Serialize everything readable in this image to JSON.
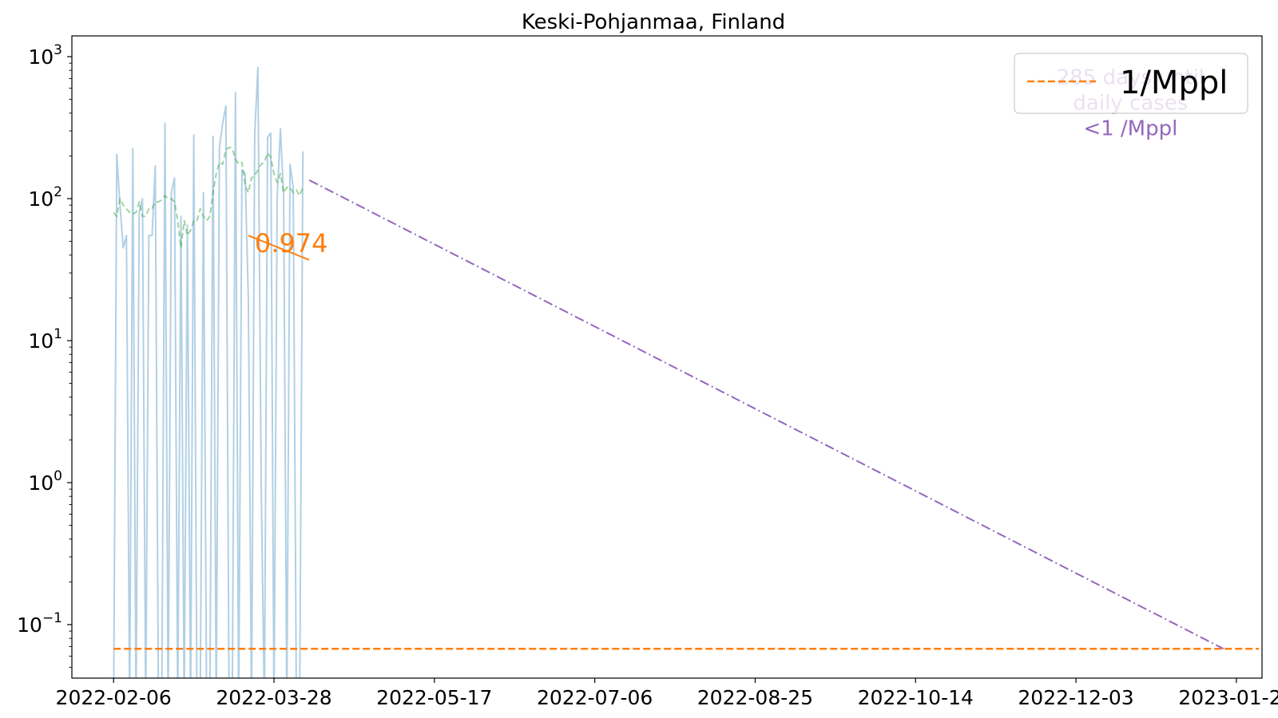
{
  "chart_data": {
    "type": "line",
    "title": "Keski-Pohjanmaa, Finland",
    "xlabel": "",
    "ylabel": "",
    "y_scale": "log",
    "ylim": [
      0.042,
      1400
    ],
    "xlim": [
      "2022-01-24",
      "2023-01-30"
    ],
    "grid": false,
    "x_tick_labels": [
      "2022-02-06",
      "2022-03-28",
      "2022-05-17",
      "2022-07-06",
      "2022-08-25",
      "2022-10-14",
      "2022-12-03",
      "2023-01-22"
    ],
    "y_ticks": [
      {
        "value": 0.1,
        "base": "10",
        "exp": "−1"
      },
      {
        "value": 1,
        "base": "10",
        "exp": "0"
      },
      {
        "value": 10,
        "base": "10",
        "exp": "1"
      },
      {
        "value": 100,
        "base": "10",
        "exp": "2"
      },
      {
        "value": 1000,
        "base": "10",
        "exp": "3"
      }
    ],
    "legend": {
      "placement": "top-right",
      "entries": [
        {
          "label": "1/Mppl",
          "color": "#ff7f0e",
          "style": "dashed"
        }
      ]
    },
    "series": [
      {
        "role": "daily",
        "color": "#1f77b4",
        "x": [
          "2022-02-06",
          "2022-02-07",
          "2022-02-08",
          "2022-02-09",
          "2022-02-10",
          "2022-02-11",
          "2022-02-12",
          "2022-02-13",
          "2022-02-14",
          "2022-02-15",
          "2022-02-16",
          "2022-02-17",
          "2022-02-18",
          "2022-02-19",
          "2022-02-20",
          "2022-02-21",
          "2022-02-22",
          "2022-02-23",
          "2022-02-24",
          "2022-02-25",
          "2022-02-26",
          "2022-02-27",
          "2022-02-28",
          "2022-03-01",
          "2022-03-02",
          "2022-03-03",
          "2022-03-04",
          "2022-03-05",
          "2022-03-06",
          "2022-03-07",
          "2022-03-08",
          "2022-03-09",
          "2022-03-10",
          "2022-03-11",
          "2022-03-12",
          "2022-03-13",
          "2022-03-14",
          "2022-03-15",
          "2022-03-16",
          "2022-03-17",
          "2022-03-18",
          "2022-03-19",
          "2022-03-20",
          "2022-03-21",
          "2022-03-22",
          "2022-03-23",
          "2022-03-24",
          "2022-03-25",
          "2022-03-26",
          "2022-03-27",
          "2022-03-28",
          "2022-03-29",
          "2022-03-30",
          "2022-03-31",
          "2022-04-01",
          "2022-04-02",
          "2022-04-03",
          "2022-04-04",
          "2022-04-05",
          "2022-04-06"
        ],
        "values": [
          0,
          205,
          90,
          45,
          55,
          0,
          225,
          0,
          80,
          100,
          0,
          55,
          55,
          170,
          0,
          0,
          340,
          0,
          110,
          140,
          0,
          75,
          0,
          65,
          0,
          280,
          0,
          0,
          110,
          0,
          0,
          275,
          0,
          230,
          340,
          450,
          0,
          0,
          560,
          0,
          160,
          150,
          20,
          0,
          290,
          840,
          1.0,
          0,
          270,
          290,
          0,
          100,
          310,
          105,
          0,
          175,
          120,
          0,
          0,
          215
        ]
      },
      {
        "role": "smoothed",
        "color": "#2ca02c",
        "x": [
          "2022-02-06",
          "2022-02-07",
          "2022-02-08",
          "2022-02-09",
          "2022-02-10",
          "2022-02-11",
          "2022-02-12",
          "2022-02-13",
          "2022-02-14",
          "2022-02-15",
          "2022-02-16",
          "2022-02-17",
          "2022-02-18",
          "2022-02-19",
          "2022-02-20",
          "2022-02-21",
          "2022-02-22",
          "2022-02-23",
          "2022-02-24",
          "2022-02-25",
          "2022-02-26",
          "2022-02-27",
          "2022-02-28",
          "2022-03-01",
          "2022-03-02",
          "2022-03-03",
          "2022-03-04",
          "2022-03-05",
          "2022-03-06",
          "2022-03-07",
          "2022-03-08",
          "2022-03-09",
          "2022-03-10",
          "2022-03-11",
          "2022-03-12",
          "2022-03-13",
          "2022-03-14",
          "2022-03-15",
          "2022-03-16",
          "2022-03-17",
          "2022-03-18",
          "2022-03-19",
          "2022-03-20",
          "2022-03-21",
          "2022-03-22",
          "2022-03-23",
          "2022-03-24",
          "2022-03-25",
          "2022-03-26",
          "2022-03-27",
          "2022-03-28",
          "2022-03-29",
          "2022-03-30",
          "2022-03-31",
          "2022-04-01",
          "2022-04-02",
          "2022-04-03",
          "2022-04-04",
          "2022-04-05",
          "2022-04-06"
        ],
        "values": [
          80,
          75,
          100,
          90,
          85,
          80,
          78,
          80,
          95,
          75,
          75,
          85,
          85,
          95,
          95,
          98,
          105,
          100,
          100,
          95,
          70,
          45,
          70,
          55,
          60,
          70,
          70,
          85,
          75,
          70,
          75,
          110,
          150,
          180,
          175,
          220,
          230,
          225,
          190,
          175,
          180,
          125,
          110,
          140,
          145,
          160,
          175,
          180,
          210,
          195,
          150,
          130,
          150,
          110,
          120,
          120,
          110,
          115,
          105,
          120
        ]
      },
      {
        "role": "threshold",
        "label": "1/Mppl",
        "color": "#ff7f0e",
        "x": [
          "2022-02-06",
          "2023-01-29"
        ],
        "values": [
          0.0675,
          0.0675
        ]
      },
      {
        "role": "projection",
        "color": "#9467bd",
        "x": [
          "2022-04-08",
          "2023-01-18"
        ],
        "values": [
          135,
          0.0675
        ]
      },
      {
        "role": "slope-marker",
        "color": "#ff7f0e",
        "x": [
          "2022-03-20",
          "2022-04-08"
        ],
        "values": [
          55,
          37
        ]
      }
    ],
    "annotations": [
      {
        "role": "slope",
        "text": "0.974",
        "color": "#ff7f0e",
        "x": "2022-03-22",
        "y": 42
      },
      {
        "role": "days",
        "lines": [
          "285 days until",
          "daily cases",
          "<1 /Mppl"
        ],
        "color": "#9467bd",
        "x": "2022-12-20",
        "y": 240
      }
    ]
  }
}
